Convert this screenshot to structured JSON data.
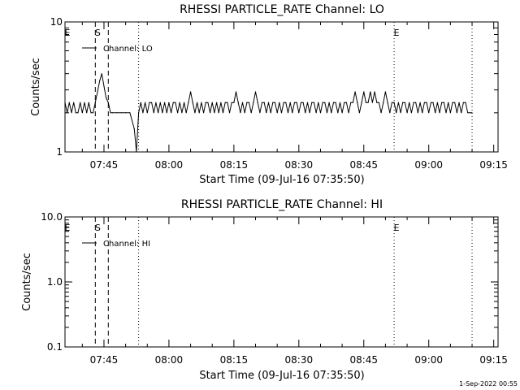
{
  "footer_timestamp": "1-Sep-2022 00:55",
  "x_axis": {
    "label": "Start Time (09-Jul-16 07:35:50)",
    "ticks": [
      {
        "t": "07:45",
        "label": "07:45"
      },
      {
        "t": "08:00",
        "label": "08:00"
      },
      {
        "t": "08:15",
        "label": "08:15"
      },
      {
        "t": "08:30",
        "label": "08:30"
      },
      {
        "t": "08:45",
        "label": "08:45"
      },
      {
        "t": "09:00",
        "label": "09:00"
      },
      {
        "t": "09:15",
        "label": "09:15"
      }
    ],
    "range": [
      "07:36",
      "09:16"
    ]
  },
  "chart_data": [
    {
      "type": "line",
      "title": "RHESSI PARTICLE_RATE Channel: LO",
      "xlabel": "Start Time (09-Jul-16 07:35:50)",
      "ylabel": "Counts/sec",
      "yscale": "log",
      "ylim": [
        1,
        10
      ],
      "yticks": [
        {
          "v": 1,
          "label": "1"
        },
        {
          "v": 10,
          "label": "10"
        }
      ],
      "legend": {
        "label": "Channel: LO",
        "placement": "top-left"
      },
      "flag_markers": [
        {
          "t": "07:36",
          "label": "E",
          "line": "none"
        },
        {
          "t": "07:43",
          "label": "S",
          "line": "dashed"
        },
        {
          "t": "07:46",
          "label": "",
          "line": "dashed"
        },
        {
          "t": "07:53",
          "label": "",
          "line": "dotted"
        },
        {
          "t": "08:52",
          "label": "E",
          "line": "dotted"
        },
        {
          "t": "09:10",
          "label": "",
          "line": "dotted"
        }
      ],
      "series": [
        {
          "name": "Channel: LO",
          "x": [
            "07:36",
            "07:36:30",
            "07:37",
            "07:37:30",
            "07:38",
            "07:38:30",
            "07:39",
            "07:39:30",
            "07:40",
            "07:40:30",
            "07:41",
            "07:41:30",
            "07:42",
            "07:42:30",
            "07:43",
            "07:43:30",
            "07:44",
            "07:44:30",
            "07:45",
            "07:45:30",
            "07:46",
            "07:46:30",
            "07:47",
            "07:48",
            "07:49",
            "07:50",
            "07:51",
            "07:52",
            "07:52:30",
            "07:53",
            "07:53:30",
            "07:54",
            "07:54:30",
            "07:55",
            "07:55:30",
            "07:56",
            "07:56:30",
            "07:57",
            "07:57:30",
            "07:58",
            "07:58:30",
            "07:59",
            "07:59:30",
            "08:00",
            "08:00:30",
            "08:01",
            "08:01:30",
            "08:02",
            "08:02:30",
            "08:03",
            "08:03:30",
            "08:04",
            "08:04:30",
            "08:05",
            "08:05:30",
            "08:06",
            "08:06:30",
            "08:07",
            "08:07:30",
            "08:08",
            "08:08:30",
            "08:09",
            "08:09:30",
            "08:10",
            "08:10:30",
            "08:11",
            "08:11:30",
            "08:12",
            "08:12:30",
            "08:13",
            "08:13:30",
            "08:14",
            "08:14:30",
            "08:15",
            "08:15:30",
            "08:16",
            "08:16:30",
            "08:17",
            "08:17:30",
            "08:18",
            "08:18:30",
            "08:19",
            "08:19:30",
            "08:20",
            "08:20:30",
            "08:21",
            "08:21:30",
            "08:22",
            "08:22:30",
            "08:23",
            "08:23:30",
            "08:24",
            "08:24:30",
            "08:25",
            "08:25:30",
            "08:26",
            "08:26:30",
            "08:27",
            "08:27:30",
            "08:28",
            "08:28:30",
            "08:29",
            "08:29:30",
            "08:30",
            "08:30:30",
            "08:31",
            "08:31:30",
            "08:32",
            "08:32:30",
            "08:33",
            "08:33:30",
            "08:34",
            "08:34:30",
            "08:35",
            "08:35:30",
            "08:36",
            "08:36:30",
            "08:37",
            "08:37:30",
            "08:38",
            "08:38:30",
            "08:39",
            "08:39:30",
            "08:40",
            "08:40:30",
            "08:41",
            "08:41:30",
            "08:42",
            "08:42:30",
            "08:43",
            "08:43:30",
            "08:44",
            "08:44:30",
            "08:45",
            "08:45:30",
            "08:46",
            "08:46:30",
            "08:47",
            "08:47:30",
            "08:48",
            "08:48:30",
            "08:49",
            "08:49:30",
            "08:50",
            "08:50:30",
            "08:51",
            "08:51:30",
            "08:52",
            "08:52:30",
            "08:53",
            "08:53:30",
            "08:54",
            "08:54:30",
            "08:55",
            "08:55:30",
            "08:56",
            "08:56:30",
            "08:57",
            "08:57:30",
            "08:58",
            "08:58:30",
            "08:59",
            "08:59:30",
            "09:00",
            "09:00:30",
            "09:01",
            "09:01:30",
            "09:02",
            "09:02:30",
            "09:03",
            "09:03:30",
            "09:04",
            "09:04:30",
            "09:05",
            "09:05:30",
            "09:06",
            "09:06:30",
            "09:07",
            "09:07:30",
            "09:08",
            "09:08:30",
            "09:09",
            "09:09:30",
            "09:10"
          ],
          "y": [
            2.4,
            2,
            2.4,
            2,
            2.4,
            2,
            2,
            2.4,
            2,
            2.4,
            2,
            2.4,
            2,
            2,
            2.4,
            2.9,
            3.5,
            4,
            3.2,
            2.6,
            2.4,
            2,
            2,
            2,
            2,
            2,
            2,
            1.5,
            1,
            2,
            2.4,
            2,
            2.4,
            2,
            2.4,
            2.4,
            2,
            2.4,
            2,
            2.4,
            2,
            2.4,
            2,
            2.4,
            2,
            2.4,
            2.4,
            2,
            2.4,
            2,
            2.4,
            2,
            2.4,
            2.9,
            2.4,
            2,
            2.4,
            2,
            2.4,
            2,
            2.4,
            2.4,
            2,
            2.4,
            2,
            2.4,
            2,
            2.4,
            2,
            2.4,
            2.4,
            2,
            2.4,
            2.4,
            2.9,
            2.4,
            2,
            2.4,
            2,
            2.4,
            2.4,
            2,
            2.4,
            2.9,
            2.4,
            2,
            2.4,
            2.4,
            2,
            2.4,
            2,
            2.4,
            2.4,
            2,
            2.4,
            2,
            2.4,
            2.4,
            2,
            2.4,
            2,
            2.4,
            2.4,
            2,
            2.4,
            2.4,
            2,
            2.4,
            2,
            2.4,
            2.4,
            2,
            2.4,
            2,
            2.4,
            2.4,
            2,
            2.4,
            2,
            2.4,
            2.4,
            2,
            2.4,
            2,
            2.4,
            2.4,
            2,
            2.4,
            2.4,
            2.9,
            2.4,
            2,
            2.4,
            2.9,
            2.4,
            2.4,
            2.9,
            2.4,
            2.9,
            2.4,
            2.4,
            2,
            2.4,
            2.9,
            2.4,
            2,
            2.4,
            2.4,
            2,
            2.4,
            2,
            2.4,
            2.4,
            2,
            2.4,
            2,
            2.4,
            2.4,
            2,
            2.4,
            2,
            2.4,
            2.4,
            2,
            2.4,
            2.4,
            2,
            2.4,
            2,
            2.4,
            2.4,
            2,
            2.4,
            2,
            2.4,
            2.4,
            2,
            2.4,
            2,
            2.4,
            2.4,
            2,
            2,
            2
          ]
        }
      ]
    },
    {
      "type": "line",
      "title": "RHESSI PARTICLE_RATE Channel: HI",
      "xlabel": "Start Time (09-Jul-16 07:35:50)",
      "ylabel": "Counts/sec",
      "yscale": "log",
      "ylim": [
        0.1,
        10
      ],
      "yticks": [
        {
          "v": 0.1,
          "label": "0.1"
        },
        {
          "v": 1,
          "label": "1.0"
        },
        {
          "v": 10,
          "label": "10.0"
        }
      ],
      "legend": {
        "label": "Channel: HI",
        "placement": "top-left"
      },
      "flag_markers": [
        {
          "t": "07:36",
          "label": "E",
          "line": "none"
        },
        {
          "t": "07:43",
          "label": "S",
          "line": "dashed"
        },
        {
          "t": "07:46",
          "label": "",
          "line": "dashed"
        },
        {
          "t": "07:53",
          "label": "",
          "line": "dotted"
        },
        {
          "t": "08:52",
          "label": "E",
          "line": "dotted"
        },
        {
          "t": "09:10",
          "label": "",
          "line": "dotted"
        }
      ],
      "series": [
        {
          "name": "Channel: HI",
          "x": [],
          "y": []
        }
      ]
    }
  ]
}
